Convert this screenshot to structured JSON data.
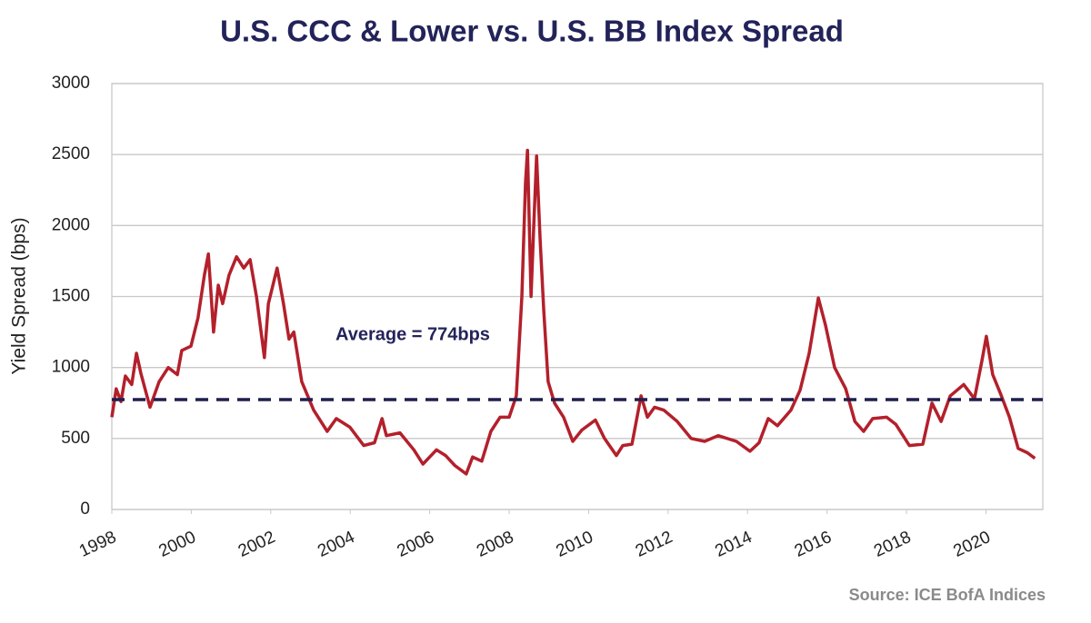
{
  "chart_data": {
    "type": "line",
    "title": "U.S. CCC & Lower vs. U.S. BB Index Spread",
    "y_label": "Yield Spread (bps)",
    "source": "Source: ICE BofA Indices",
    "x": [
      1998.0,
      1998.11,
      1998.23,
      1998.34,
      1998.5,
      1998.62,
      1998.73,
      1998.96,
      1999.19,
      1999.42,
      1999.65,
      1999.76,
      1999.99,
      2000.17,
      2000.33,
      2000.43,
      2000.56,
      2000.68,
      2000.79,
      2000.95,
      2001.14,
      2001.32,
      2001.48,
      2001.64,
      2001.78,
      2001.84,
      2001.94,
      2002.16,
      2002.32,
      2002.46,
      2002.58,
      2002.78,
      2003.08,
      2003.42,
      2003.65,
      2003.99,
      2004.34,
      2004.61,
      2004.8,
      2004.91,
      2005.25,
      2005.6,
      2005.83,
      2006.17,
      2006.4,
      2006.63,
      2006.92,
      2007.08,
      2007.31,
      2007.54,
      2007.77,
      2008.0,
      2008.18,
      2008.32,
      2008.41,
      2008.46,
      2008.55,
      2008.62,
      2008.69,
      2008.78,
      2008.87,
      2008.98,
      2009.14,
      2009.37,
      2009.6,
      2009.83,
      2010.17,
      2010.4,
      2010.7,
      2010.86,
      2011.09,
      2011.32,
      2011.48,
      2011.66,
      2011.89,
      2012.23,
      2012.58,
      2012.92,
      2013.26,
      2013.72,
      2014.06,
      2014.29,
      2014.52,
      2014.75,
      2015.09,
      2015.32,
      2015.55,
      2015.78,
      2015.96,
      2016.19,
      2016.47,
      2016.7,
      2016.92,
      2017.15,
      2017.5,
      2017.73,
      2018.07,
      2018.41,
      2018.64,
      2018.87,
      2019.1,
      2019.44,
      2019.71,
      2019.9,
      2020.01,
      2020.17,
      2020.36,
      2020.59,
      2020.81,
      2021.04,
      2021.23
    ],
    "series": [
      {
        "color": "#b3202b",
        "values": [
          650,
          850,
          760,
          940,
          880,
          1100,
          960,
          720,
          900,
          1000,
          950,
          1120,
          1150,
          1350,
          1650,
          1800,
          1250,
          1580,
          1450,
          1650,
          1780,
          1700,
          1760,
          1500,
          1200,
          1070,
          1450,
          1700,
          1450,
          1200,
          1250,
          900,
          700,
          550,
          640,
          580,
          450,
          470,
          640,
          520,
          540,
          420,
          320,
          420,
          380,
          310,
          250,
          370,
          340,
          550,
          650,
          650,
          800,
          1500,
          2300,
          2530,
          1500,
          2000,
          2490,
          1900,
          1400,
          900,
          750,
          650,
          480,
          560,
          630,
          500,
          380,
          450,
          460,
          800,
          650,
          720,
          700,
          620,
          500,
          480,
          520,
          480,
          410,
          470,
          640,
          590,
          700,
          840,
          1100,
          1490,
          1300,
          1000,
          850,
          620,
          550,
          640,
          650,
          600,
          450,
          460,
          750,
          620,
          800,
          880,
          780,
          1050,
          1220,
          950,
          820,
          650,
          430,
          400,
          360
        ]
      }
    ],
    "average": {
      "value": 774,
      "label": "Average = 774bps"
    },
    "xlim": [
      1998,
      2021.43
    ],
    "ylim": [
      0,
      3000
    ],
    "xticks": [
      1998,
      2000,
      2002,
      2004,
      2006,
      2008,
      2010,
      2012,
      2014,
      2016,
      2018,
      2020
    ],
    "yticks": [
      0,
      500,
      1000,
      1500,
      2000,
      2500,
      3000
    ],
    "grid": true
  }
}
